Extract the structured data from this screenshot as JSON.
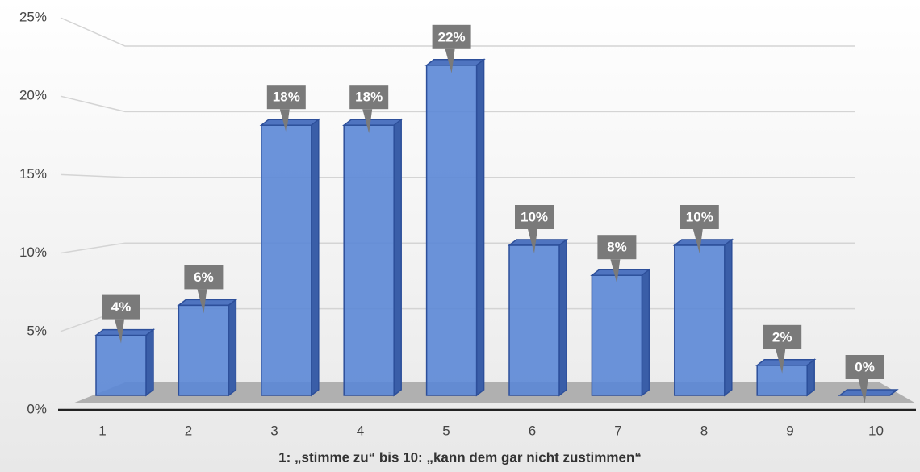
{
  "chart_data": {
    "type": "bar",
    "x_label": "1: „stimme zu“ bis 10: „kann dem gar nicht zustimmen“",
    "categories": [
      "1",
      "2",
      "3",
      "4",
      "5",
      "6",
      "7",
      "8",
      "9",
      "10"
    ],
    "values": [
      4,
      6,
      18,
      18,
      22,
      10,
      8,
      10,
      2,
      0
    ],
    "value_labels": [
      "4%",
      "6%",
      "18%",
      "18%",
      "22%",
      "10%",
      "8%",
      "10%",
      "2%",
      "0%"
    ],
    "color": "#5b87d6",
    "ylim": [
      0,
      25
    ],
    "yticks": [
      {
        "value": 0,
        "label": "0%"
      },
      {
        "value": 5,
        "label": "5%"
      },
      {
        "value": 10,
        "label": "10%"
      },
      {
        "value": 15,
        "label": "15%"
      },
      {
        "value": 20,
        "label": "20%"
      },
      {
        "value": 25,
        "label": "25%"
      }
    ],
    "grid": true
  }
}
